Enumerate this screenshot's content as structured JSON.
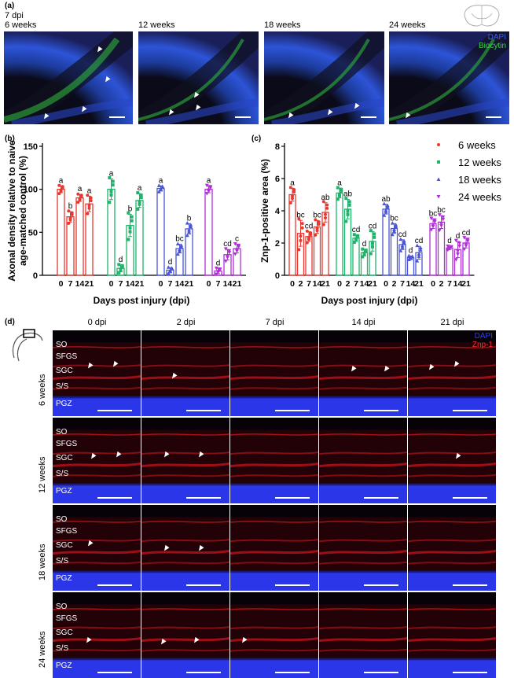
{
  "panel_a": {
    "label": "(a)",
    "first_note": "7 dpi",
    "titles": [
      "6 weeks",
      "12 weeks",
      "18 weeks",
      "24 weeks"
    ],
    "legend": {
      "dapi": "DAPI",
      "biocytin": "Biocytin",
      "dapi_color": "#3a5cff",
      "biocytin_color": "#39d24a"
    }
  },
  "panel_b": {
    "label": "(b)",
    "ylabel_line1": "Axonal density relative to naive",
    "ylabel_line2": "age-matched control (%)",
    "xlabel": "Days post injury (dpi)"
  },
  "panel_c": {
    "label": "(c)",
    "ylabel": "Znp-1-positive area (%)",
    "xlabel": "Days post injury (dpi)"
  },
  "legend": {
    "items": [
      {
        "name": "6 weeks",
        "color": "#e8382f",
        "marker": "circle"
      },
      {
        "name": "12 weeks",
        "color": "#1fb36b",
        "marker": "square"
      },
      {
        "name": "18 weeks",
        "color": "#4a55d6",
        "marker": "triangle"
      },
      {
        "name": "24 weeks",
        "color": "#b12fd6",
        "marker": "triangle-down"
      }
    ]
  },
  "panel_d": {
    "label": "(d)",
    "columns": [
      "0 dpi",
      "2 dpi",
      "7 dpi",
      "14 dpi",
      "21 dpi"
    ],
    "rows": [
      "6 weeks",
      "12 weeks",
      "18 weeks",
      "24 weeks"
    ],
    "layers": [
      "SO",
      "SFGS",
      "SGC",
      "S/S",
      "PGZ"
    ],
    "legend": {
      "dapi": "DAPI",
      "znp": "Znp-1",
      "dapi_color": "#2c3cff",
      "znp_color": "#ff2a2a"
    }
  },
  "chart_data": [
    {
      "type": "bar",
      "title": "",
      "xlabel": "Days post injury (dpi)",
      "ylabel": "Axonal density relative to naive age-matched control (%)",
      "ylim": [
        0,
        150
      ],
      "yticks": [
        0,
        50,
        100,
        150
      ],
      "series": [
        {
          "name": "6 weeks",
          "categories": [
            "0",
            "7",
            "14",
            "21"
          ],
          "values": [
            100,
            68,
            90,
            83
          ],
          "errors": [
            4,
            6,
            4,
            9
          ],
          "letters": [
            "a",
            "b",
            "a",
            "a"
          ]
        },
        {
          "name": "12 weeks",
          "categories": [
            "0",
            "7",
            "14",
            "21"
          ],
          "values": [
            100,
            8,
            58,
            87
          ],
          "errors": [
            12,
            4,
            13,
            8
          ],
          "letters": [
            "a",
            "d",
            "b",
            "a"
          ]
        },
        {
          "name": "18 weeks",
          "categories": [
            "0",
            "7",
            "14",
            "21"
          ],
          "values": [
            101,
            6,
            31,
            54
          ],
          "errors": [
            3,
            3,
            5,
            6
          ],
          "letters": [
            "a",
            "d",
            "bc",
            "b"
          ]
        },
        {
          "name": "24 weeks",
          "categories": [
            "0",
            "7",
            "14",
            "21"
          ],
          "values": [
            100,
            5,
            24,
            31
          ],
          "errors": [
            4,
            3,
            6,
            5
          ],
          "letters": [
            "a",
            "d",
            "cd",
            "c"
          ]
        }
      ]
    },
    {
      "type": "bar",
      "title": "",
      "xlabel": "Days post injury (dpi)",
      "ylabel": "Znp-1-positive area (%)",
      "ylim": [
        0,
        8
      ],
      "yticks": [
        0,
        2,
        4,
        6,
        8
      ],
      "series": [
        {
          "name": "6 weeks",
          "categories": [
            "0",
            "2",
            "7",
            "14",
            "21"
          ],
          "values": [
            5.0,
            2.6,
            2.4,
            3.0,
            3.9
          ],
          "errors": [
            0.4,
            0.8,
            0.3,
            0.4,
            0.6
          ],
          "letters": [
            "a",
            "bc",
            "cd",
            "bc",
            "ab"
          ]
        },
        {
          "name": "12 weeks",
          "categories": [
            "0",
            "2",
            "7",
            "14",
            "21"
          ],
          "values": [
            5.1,
            4.1,
            2.3,
            1.4,
            2.1
          ],
          "errors": [
            0.3,
            0.6,
            0.2,
            0.2,
            0.6
          ],
          "letters": [
            "a",
            "ab",
            "cd",
            "d",
            "cd"
          ]
        },
        {
          "name": "18 weeks",
          "categories": [
            "0",
            "2",
            "7",
            "14",
            "21"
          ],
          "values": [
            4.1,
            2.9,
            1.9,
            1.1,
            1.4
          ],
          "errors": [
            0.3,
            0.3,
            0.3,
            0.1,
            0.4
          ],
          "letters": [
            "ab",
            "bc",
            "cd",
            "d",
            "cd"
          ]
        },
        {
          "name": "24 weeks",
          "categories": [
            "0",
            "2",
            "7",
            "14",
            "21"
          ],
          "values": [
            3.2,
            3.3,
            1.7,
            1.6,
            2.0
          ],
          "errors": [
            0.3,
            0.4,
            0.1,
            0.5,
            0.3
          ],
          "letters": [
            "bc",
            "bc",
            "d",
            "d",
            "cd"
          ]
        }
      ]
    }
  ]
}
